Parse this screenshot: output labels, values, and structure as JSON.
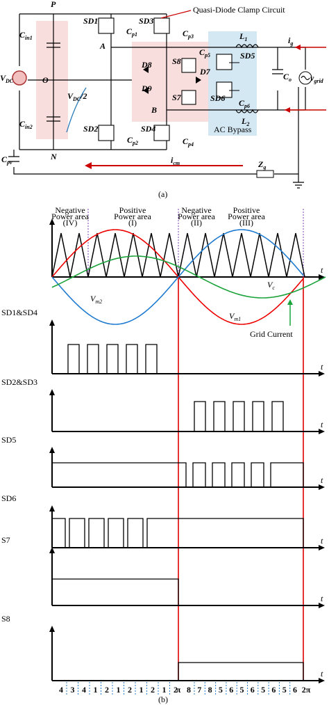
{
  "figure_a": {
    "caption": "(a)",
    "labels": [
      {
        "text": "P"
      },
      {
        "text": "O"
      },
      {
        "text": "N"
      },
      {
        "text": "A"
      },
      {
        "text": "B"
      },
      {
        "text": "C",
        "sub": "in1"
      },
      {
        "text": "C",
        "sub": "in2"
      },
      {
        "text": "V",
        "sub": "DC"
      },
      {
        "text": "C",
        "sub": "pv"
      },
      {
        "text": "SD1"
      },
      {
        "text": "C",
        "sub": "p1"
      },
      {
        "text": "SD3"
      },
      {
        "text": "C",
        "sub": "p3"
      },
      {
        "text": "SD2"
      },
      {
        "text": "C",
        "sub": "p2"
      },
      {
        "text": "SD4"
      },
      {
        "text": "C",
        "sub": "p4"
      },
      {
        "text": "S8"
      },
      {
        "text": "S7"
      },
      {
        "text": "D8"
      },
      {
        "text": "D9"
      },
      {
        "text": "D7"
      },
      {
        "text": "C",
        "sub": "p5"
      },
      {
        "text": "SD5"
      },
      {
        "text": "SD6"
      },
      {
        "text": "C",
        "sub": "p6"
      },
      {
        "text": "L",
        "sub": "1"
      },
      {
        "text": "L",
        "sub": "2"
      },
      {
        "text": "C",
        "sub": "o"
      },
      {
        "text": "i",
        "sub": "g"
      },
      {
        "text": "v",
        "sub": "grid"
      },
      {
        "text": "Z",
        "sub": "g"
      },
      {
        "text": "i",
        "sub": "cm"
      },
      {
        "text": "V",
        "sub": "DC",
        "after": "/2"
      }
    ],
    "clamp_title": "Quasi-Diode Clamp Circuit",
    "bypass_title": "AC Bypass"
  },
  "figure_b": {
    "caption": "(b)",
    "areas": [
      [
        "Negative",
        "Power area",
        "(IV)"
      ],
      [
        "Positive",
        "Power area",
        "(I)"
      ],
      [
        "Negative",
        "Power area",
        "(II)"
      ],
      [
        "Positive",
        "Power area",
        "(III)"
      ]
    ],
    "axis_variable": "t",
    "curves": [
      {
        "text": "V",
        "sub": "c"
      },
      {
        "text": "V",
        "sub": "m2"
      },
      {
        "text": "V",
        "sub": "m1"
      },
      {
        "text": "Grid Current"
      }
    ],
    "signals": [
      "SD1&SD4",
      "SD2&SD3",
      "SD5",
      "SD6",
      "S7",
      "S8"
    ],
    "sectors": [
      "4",
      "3",
      "4",
      "1",
      "2",
      "1",
      "2",
      "1",
      "2",
      "1",
      "2",
      "π",
      "8",
      "7",
      "8",
      "5",
      "6",
      "5",
      "6",
      "5",
      "6",
      "5",
      "6",
      "2π"
    ]
  }
}
